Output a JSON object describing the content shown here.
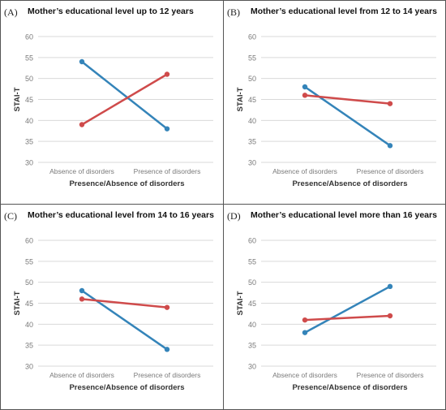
{
  "colors": {
    "series_blue": "#3484b9",
    "series_red": "#cf4b4b",
    "grid": "#d9d9d9",
    "axis_text": "#7a7a7a"
  },
  "chart_data": [
    {
      "type": "line",
      "panel_label": "(A)",
      "title": "Mother’s educational level up to 12 years",
      "xlabel": "Presence/Absence of disorders",
      "ylabel": "STAI-T",
      "categories": [
        "Absence of disorders",
        "Presence of disorders"
      ],
      "ylim": [
        30,
        60
      ],
      "yticks": [
        30,
        35,
        40,
        45,
        50,
        55,
        60
      ],
      "grid": true,
      "series": [
        {
          "color": "#3484b9",
          "values": [
            54,
            38
          ]
        },
        {
          "color": "#cf4b4b",
          "values": [
            39,
            51
          ]
        }
      ]
    },
    {
      "type": "line",
      "panel_label": "(B)",
      "title": "Mother’s educational level from 12 to 14 years",
      "xlabel": "Presence/Absence of disorders",
      "ylabel": "STAI-T",
      "categories": [
        "Absence of disorders",
        "Presence of disorders"
      ],
      "ylim": [
        30,
        60
      ],
      "yticks": [
        30,
        35,
        40,
        45,
        50,
        55,
        60
      ],
      "grid": true,
      "series": [
        {
          "color": "#3484b9",
          "values": [
            48,
            34
          ]
        },
        {
          "color": "#cf4b4b",
          "values": [
            46,
            44
          ]
        }
      ]
    },
    {
      "type": "line",
      "panel_label": "(C)",
      "title": "Mother’s educational level from 14 to 16 years",
      "xlabel": "Presence/Absence of disorders",
      "ylabel": "STAI-T",
      "categories": [
        "Absence of disorders",
        "Presence of disorders"
      ],
      "ylim": [
        30,
        60
      ],
      "yticks": [
        30,
        35,
        40,
        45,
        50,
        55,
        60
      ],
      "grid": true,
      "series": [
        {
          "color": "#3484b9",
          "values": [
            48,
            34
          ]
        },
        {
          "color": "#cf4b4b",
          "values": [
            46,
            44
          ]
        }
      ]
    },
    {
      "type": "line",
      "panel_label": "(D)",
      "title": "Mother’s educational level more than 16 years",
      "xlabel": "Presence/Absence of disorders",
      "ylabel": "STAI-T",
      "categories": [
        "Absence of disorders",
        "Presence of disorders"
      ],
      "ylim": [
        30,
        60
      ],
      "yticks": [
        30,
        35,
        40,
        45,
        50,
        55,
        60
      ],
      "grid": true,
      "series": [
        {
          "color": "#3484b9",
          "values": [
            38,
            49
          ]
        },
        {
          "color": "#cf4b4b",
          "values": [
            41,
            42
          ]
        }
      ]
    }
  ]
}
